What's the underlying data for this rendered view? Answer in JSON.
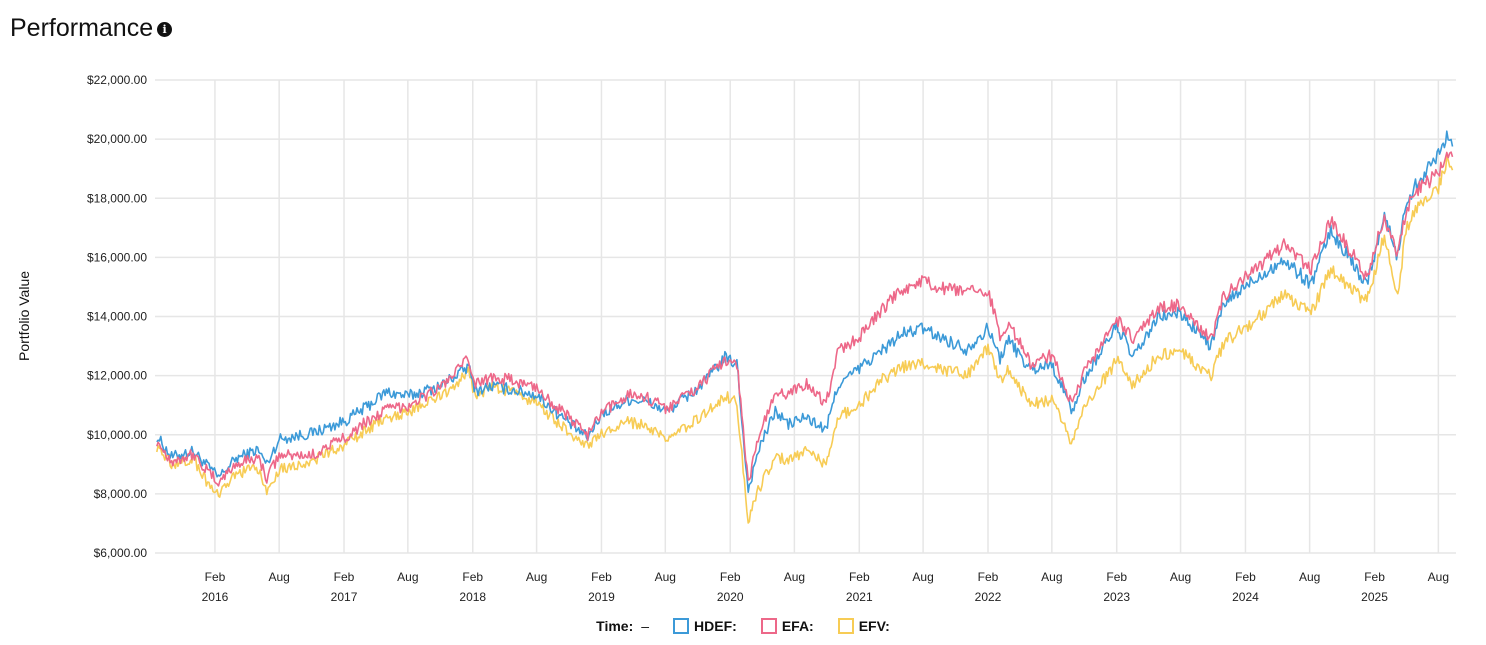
{
  "header": {
    "title": "Performance",
    "info_icon": "info-icon"
  },
  "legend": {
    "time_label": "Time:",
    "time_value": "–"
  },
  "chart_data": {
    "type": "line",
    "ylabel": "Portfolio Value",
    "ylim": [
      6000,
      22000
    ],
    "xlim": [
      "2015-08-15",
      "2025-09-20"
    ],
    "grid": true,
    "legend_position": "bottom",
    "y_ticks": [
      "$6,000.00",
      "$8,000.00",
      "$10,000.00",
      "$12,000.00",
      "$14,000.00",
      "$16,000.00",
      "$18,000.00",
      "$20,000.00",
      "$22,000.00"
    ],
    "x_ticks": [
      {
        "date": "2016-02-01",
        "label": "Feb",
        "year": "2016"
      },
      {
        "date": "2016-08-01",
        "label": "Aug",
        "year": ""
      },
      {
        "date": "2017-02-01",
        "label": "Feb",
        "year": "2017"
      },
      {
        "date": "2017-08-01",
        "label": "Aug",
        "year": ""
      },
      {
        "date": "2018-02-01",
        "label": "Feb",
        "year": "2018"
      },
      {
        "date": "2018-08-01",
        "label": "Aug",
        "year": ""
      },
      {
        "date": "2019-02-01",
        "label": "Feb",
        "year": "2019"
      },
      {
        "date": "2019-08-01",
        "label": "Aug",
        "year": ""
      },
      {
        "date": "2020-02-01",
        "label": "Feb",
        "year": "2020"
      },
      {
        "date": "2020-08-01",
        "label": "Aug",
        "year": ""
      },
      {
        "date": "2021-02-01",
        "label": "Feb",
        "year": "2021"
      },
      {
        "date": "2021-08-01",
        "label": "Aug",
        "year": ""
      },
      {
        "date": "2022-02-01",
        "label": "Feb",
        "year": "2022"
      },
      {
        "date": "2022-08-01",
        "label": "Aug",
        "year": ""
      },
      {
        "date": "2023-02-01",
        "label": "Feb",
        "year": "2023"
      },
      {
        "date": "2023-08-01",
        "label": "Aug",
        "year": ""
      },
      {
        "date": "2024-02-01",
        "label": "Feb",
        "year": "2024"
      },
      {
        "date": "2024-08-01",
        "label": "Aug",
        "year": ""
      },
      {
        "date": "2025-02-01",
        "label": "Feb",
        "year": "2025"
      },
      {
        "date": "2025-08-01",
        "label": "Aug",
        "year": ""
      }
    ],
    "series": [
      {
        "name": "HDEF:",
        "color": "#3c9ad8",
        "points": [
          [
            "2015-08-20",
            9950
          ],
          [
            "2015-10-01",
            9250
          ],
          [
            "2015-12-01",
            9450
          ],
          [
            "2016-01-15",
            8900
          ],
          [
            "2016-02-11",
            8550
          ],
          [
            "2016-04-01",
            9200
          ],
          [
            "2016-06-01",
            9500
          ],
          [
            "2016-06-27",
            9000
          ],
          [
            "2016-08-01",
            9850
          ],
          [
            "2016-11-01",
            10050
          ],
          [
            "2017-02-01",
            10450
          ],
          [
            "2017-04-01",
            10900
          ],
          [
            "2017-06-01",
            11450
          ],
          [
            "2017-08-01",
            11300
          ],
          [
            "2017-11-01",
            11650
          ],
          [
            "2018-01-20",
            12300
          ],
          [
            "2018-02-09",
            11500
          ],
          [
            "2018-04-01",
            11650
          ],
          [
            "2018-06-01",
            11500
          ],
          [
            "2018-08-01",
            11350
          ],
          [
            "2018-10-01",
            10700
          ],
          [
            "2018-12-24",
            9900
          ],
          [
            "2019-02-01",
            10700
          ],
          [
            "2019-04-20",
            11200
          ],
          [
            "2019-06-01",
            11150
          ],
          [
            "2019-08-05",
            10800
          ],
          [
            "2019-11-01",
            11550
          ],
          [
            "2020-01-17",
            12600
          ],
          [
            "2020-02-20",
            12400
          ],
          [
            "2020-03-23",
            8100
          ],
          [
            "2020-04-20",
            9450
          ],
          [
            "2020-06-08",
            10800
          ],
          [
            "2020-07-15",
            10350
          ],
          [
            "2020-09-01",
            10600
          ],
          [
            "2020-10-30",
            10150
          ],
          [
            "2020-12-01",
            11650
          ],
          [
            "2021-02-01",
            12250
          ],
          [
            "2021-04-01",
            12800
          ],
          [
            "2021-06-01",
            13400
          ],
          [
            "2021-08-01",
            13600
          ],
          [
            "2021-09-01",
            13400
          ],
          [
            "2021-12-01",
            12900
          ],
          [
            "2022-02-01",
            13600
          ],
          [
            "2022-03-07",
            12600
          ],
          [
            "2022-04-01",
            13200
          ],
          [
            "2022-06-01",
            12200
          ],
          [
            "2022-08-01",
            12400
          ],
          [
            "2022-09-29",
            10800
          ],
          [
            "2022-11-01",
            11900
          ],
          [
            "2023-02-01",
            13700
          ],
          [
            "2023-03-20",
            12600
          ],
          [
            "2023-06-01",
            14000
          ],
          [
            "2023-08-01",
            14100
          ],
          [
            "2023-10-27",
            13000
          ],
          [
            "2023-12-01",
            14400
          ],
          [
            "2024-03-01",
            15300
          ],
          [
            "2024-05-20",
            15900
          ],
          [
            "2024-08-05",
            15100
          ],
          [
            "2024-09-30",
            16900
          ],
          [
            "2025-01-10",
            15100
          ],
          [
            "2025-03-01",
            17400
          ],
          [
            "2025-04-08",
            16000
          ],
          [
            "2025-05-01",
            17900
          ],
          [
            "2025-06-01",
            18500
          ],
          [
            "2025-08-01",
            19500
          ],
          [
            "2025-08-25",
            20150
          ],
          [
            "2025-09-10",
            19750
          ]
        ]
      },
      {
        "name": "EFA:",
        "color": "#ed6889",
        "points": [
          [
            "2015-08-20",
            9800
          ],
          [
            "2015-10-01",
            9100
          ],
          [
            "2015-12-01",
            9350
          ],
          [
            "2016-01-15",
            8700
          ],
          [
            "2016-02-11",
            8400
          ],
          [
            "2016-04-01",
            9000
          ],
          [
            "2016-06-01",
            9250
          ],
          [
            "2016-06-27",
            8550
          ],
          [
            "2016-08-01",
            9300
          ],
          [
            "2016-11-01",
            9300
          ],
          [
            "2017-02-01",
            9900
          ],
          [
            "2017-04-01",
            10400
          ],
          [
            "2017-06-01",
            10850
          ],
          [
            "2017-08-01",
            11000
          ],
          [
            "2017-11-01",
            11600
          ],
          [
            "2018-01-20",
            12550
          ],
          [
            "2018-02-09",
            11700
          ],
          [
            "2018-04-01",
            12000
          ],
          [
            "2018-06-01",
            11800
          ],
          [
            "2018-08-01",
            11600
          ],
          [
            "2018-10-01",
            10900
          ],
          [
            "2018-12-24",
            10000
          ],
          [
            "2019-02-01",
            10700
          ],
          [
            "2019-04-20",
            11400
          ],
          [
            "2019-06-01",
            11300
          ],
          [
            "2019-08-05",
            10900
          ],
          [
            "2019-11-01",
            11600
          ],
          [
            "2020-01-17",
            12550
          ],
          [
            "2020-02-20",
            12450
          ],
          [
            "2020-03-23",
            8350
          ],
          [
            "2020-04-20",
            9900
          ],
          [
            "2020-06-08",
            11350
          ],
          [
            "2020-07-15",
            11400
          ],
          [
            "2020-09-01",
            11750
          ],
          [
            "2020-10-30",
            11050
          ],
          [
            "2020-12-01",
            12800
          ],
          [
            "2021-02-01",
            13300
          ],
          [
            "2021-04-01",
            14150
          ],
          [
            "2021-06-01",
            14900
          ],
          [
            "2021-08-01",
            15200
          ],
          [
            "2021-09-01",
            15000
          ],
          [
            "2021-12-01",
            14800
          ],
          [
            "2022-02-01",
            14900
          ],
          [
            "2022-03-07",
            13400
          ],
          [
            "2022-04-01",
            13800
          ],
          [
            "2022-06-01",
            12400
          ],
          [
            "2022-08-01",
            12700
          ],
          [
            "2022-09-29",
            11000
          ],
          [
            "2022-11-01",
            12100
          ],
          [
            "2023-02-01",
            13900
          ],
          [
            "2023-03-20",
            13200
          ],
          [
            "2023-06-01",
            14300
          ],
          [
            "2023-08-01",
            14400
          ],
          [
            "2023-10-27",
            13200
          ],
          [
            "2023-12-01",
            14700
          ],
          [
            "2024-03-01",
            15600
          ],
          [
            "2024-05-20",
            16400
          ],
          [
            "2024-08-05",
            15600
          ],
          [
            "2024-09-30",
            17300
          ],
          [
            "2025-01-10",
            15300
          ],
          [
            "2025-03-01",
            17400
          ],
          [
            "2025-04-08",
            16000
          ],
          [
            "2025-05-01",
            17600
          ],
          [
            "2025-06-01",
            18300
          ],
          [
            "2025-08-01",
            18800
          ],
          [
            "2025-08-25",
            19700
          ],
          [
            "2025-09-10",
            19400
          ]
        ]
      },
      {
        "name": "EFV:",
        "color": "#f7cc55",
        "points": [
          [
            "2015-08-20",
            9600
          ],
          [
            "2015-10-01",
            9000
          ],
          [
            "2015-12-01",
            9200
          ],
          [
            "2016-01-15",
            8300
          ],
          [
            "2016-02-11",
            7900
          ],
          [
            "2016-04-01",
            8700
          ],
          [
            "2016-06-01",
            8850
          ],
          [
            "2016-06-27",
            8100
          ],
          [
            "2016-08-01",
            8850
          ],
          [
            "2016-11-01",
            9100
          ],
          [
            "2017-02-01",
            9650
          ],
          [
            "2017-04-01",
            10100
          ],
          [
            "2017-06-01",
            10600
          ],
          [
            "2017-08-01",
            10750
          ],
          [
            "2017-11-01",
            11300
          ],
          [
            "2018-01-20",
            12100
          ],
          [
            "2018-02-09",
            11300
          ],
          [
            "2018-04-01",
            11650
          ],
          [
            "2018-06-01",
            11400
          ],
          [
            "2018-08-01",
            11100
          ],
          [
            "2018-10-01",
            10400
          ],
          [
            "2018-12-24",
            9600
          ],
          [
            "2019-02-01",
            10000
          ],
          [
            "2019-04-20",
            10450
          ],
          [
            "2019-06-01",
            10300
          ],
          [
            "2019-08-05",
            9800
          ],
          [
            "2019-11-01",
            10550
          ],
          [
            "2020-01-17",
            11300
          ],
          [
            "2020-02-20",
            11100
          ],
          [
            "2020-03-23",
            7100
          ],
          [
            "2020-04-20",
            8100
          ],
          [
            "2020-06-08",
            9300
          ],
          [
            "2020-07-15",
            9100
          ],
          [
            "2020-09-01",
            9500
          ],
          [
            "2020-10-30",
            9000
          ],
          [
            "2020-12-01",
            10600
          ],
          [
            "2021-02-01",
            11000
          ],
          [
            "2021-04-01",
            11800
          ],
          [
            "2021-06-01",
            12300
          ],
          [
            "2021-08-01",
            12400
          ],
          [
            "2021-09-01",
            12300
          ],
          [
            "2021-12-01",
            12000
          ],
          [
            "2022-02-01",
            12900
          ],
          [
            "2022-03-07",
            11800
          ],
          [
            "2022-04-01",
            12200
          ],
          [
            "2022-06-01",
            11000
          ],
          [
            "2022-08-01",
            11200
          ],
          [
            "2022-09-29",
            9700
          ],
          [
            "2022-11-01",
            10900
          ],
          [
            "2023-02-01",
            12500
          ],
          [
            "2023-03-20",
            11700
          ],
          [
            "2023-06-01",
            12700
          ],
          [
            "2023-08-01",
            12800
          ],
          [
            "2023-10-27",
            12000
          ],
          [
            "2023-12-01",
            13100
          ],
          [
            "2024-03-01",
            13900
          ],
          [
            "2024-05-20",
            14700
          ],
          [
            "2024-08-05",
            14100
          ],
          [
            "2024-09-30",
            15600
          ],
          [
            "2025-01-10",
            14500
          ],
          [
            "2025-03-01",
            16800
          ],
          [
            "2025-04-08",
            14600
          ],
          [
            "2025-05-01",
            17000
          ],
          [
            "2025-06-01",
            17700
          ],
          [
            "2025-08-01",
            18300
          ],
          [
            "2025-08-25",
            19300
          ],
          [
            "2025-09-10",
            18950
          ]
        ]
      }
    ]
  }
}
